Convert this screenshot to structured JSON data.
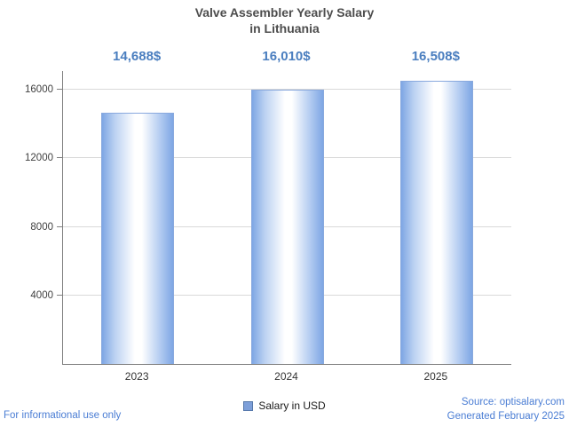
{
  "title": {
    "line1": "Valve Assembler Yearly Salary",
    "line2": "in Lithuania"
  },
  "chart_data": {
    "type": "bar",
    "title": "Valve Assembler Yearly Salary in Lithuania",
    "categories": [
      "2023",
      "2024",
      "2025"
    ],
    "values": [
      14688,
      16010,
      16508
    ],
    "value_labels": [
      "14,688$",
      "16,010$",
      "16,508$"
    ],
    "series_name": "Salary in USD",
    "xlabel": "",
    "ylabel": "",
    "yticks": [
      4000,
      8000,
      12000,
      16000
    ],
    "ylim": [
      0,
      17100
    ],
    "grid": true,
    "legend_position": "bottom",
    "bar_centers_pct": [
      16.667,
      50,
      83.333
    ]
  },
  "footer": {
    "left": "For informational use only",
    "source": "Source: optisalary.com",
    "generated": "Generated February 2025"
  },
  "colors": {
    "value_label_blue": "#4a7ebf",
    "footer_blue": "#4a7dd4",
    "bar_fill_main": "#7ea6e4",
    "bar_edge": "#89a9de",
    "title_gray": "#4d4d4d",
    "gridline_gray": "#d9d9d9"
  }
}
